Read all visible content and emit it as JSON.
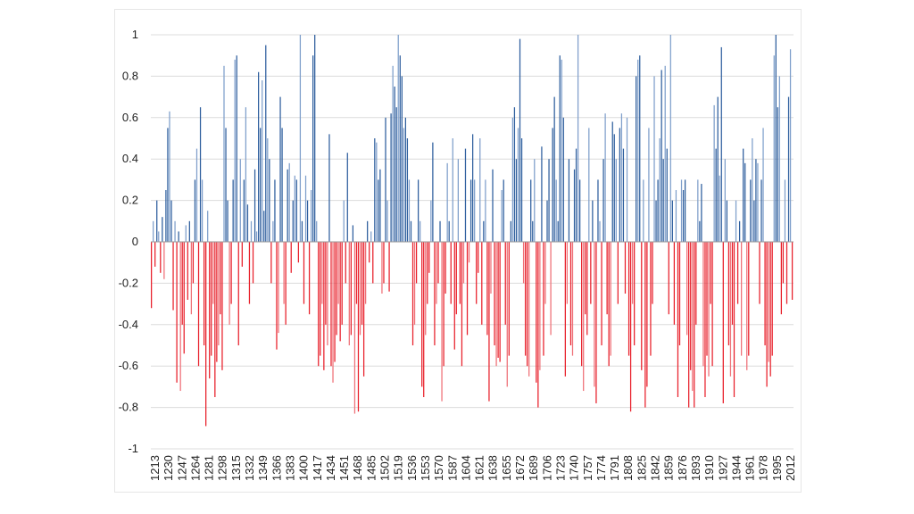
{
  "chart_data": {
    "type": "bar",
    "title": "",
    "xlabel": "",
    "ylabel": "",
    "x_range": [
      1213,
      2012
    ],
    "ylim": [
      -1,
      1
    ],
    "y_ticks": [
      1,
      0.8,
      0.6,
      0.4,
      0.2,
      0,
      -0.2,
      -0.4,
      -0.6,
      -0.8,
      -1
    ],
    "y_tick_labels": [
      "1",
      "0.8",
      "0.6",
      "0.4",
      "0.2",
      "0",
      "-0.2",
      "-0.4",
      "-0.6",
      "-0.8",
      "-1"
    ],
    "x_tick_labels": [
      "1213",
      "1230",
      "1247",
      "1264",
      "1281",
      "1298",
      "1315",
      "1332",
      "1349",
      "1366",
      "1383",
      "1400",
      "1417",
      "1434",
      "1451",
      "1468",
      "1485",
      "1502",
      "1519",
      "1536",
      "1553",
      "1570",
      "1587",
      "1604",
      "1621",
      "1638",
      "1655",
      "1672",
      "1689",
      "1706",
      "1723",
      "1740",
      "1757",
      "1774",
      "1791",
      "1808",
      "1825",
      "1842",
      "1859",
      "1876",
      "1893",
      "1910",
      "1927",
      "1944",
      "1961",
      "1978",
      "1995",
      "2012"
    ],
    "grid": true,
    "colors": {
      "positive": "#2f5f9e",
      "positive_light": "#7f9fcb",
      "negative": "#e8202b",
      "negative_light": "#ef7077"
    },
    "values": [
      -0.32,
      0.1,
      -0.12,
      0.2,
      0.05,
      -0.15,
      0.12,
      -0.18,
      0.25,
      0.55,
      0.63,
      0.2,
      -0.33,
      0.1,
      -0.68,
      0.05,
      -0.72,
      -0.4,
      -0.54,
      0.08,
      -0.28,
      0.1,
      -0.35,
      -0.2,
      0.3,
      0.45,
      -0.6,
      0.65,
      0.3,
      -0.5,
      -0.89,
      0.15,
      -0.66,
      -0.55,
      -0.3,
      -0.75,
      -0.58,
      -0.5,
      -0.35,
      -0.62,
      0.85,
      0.55,
      0.2,
      -0.4,
      -0.3,
      0.3,
      0.88,
      0.9,
      -0.5,
      0.4,
      -0.12,
      0.3,
      0.65,
      0.18,
      -0.3,
      0.1,
      -0.2,
      0.35,
      0.05,
      0.82,
      0.55,
      0.78,
      0.15,
      0.95,
      0.5,
      0.4,
      -0.2,
      0.1,
      0.3,
      -0.52,
      -0.44,
      0.7,
      0.55,
      -0.3,
      -0.4,
      0.35,
      0.38,
      -0.15,
      0.2,
      0.32,
      0.3,
      -0.1,
      1.0,
      0.1,
      -0.3,
      0.32,
      0.2,
      -0.35,
      0.25,
      0.9,
      1.0,
      0.1,
      -0.6,
      -0.55,
      -0.3,
      -0.62,
      -0.4,
      -0.5,
      0.52,
      -0.6,
      -0.68,
      -0.58,
      -0.45,
      -0.3,
      -0.48,
      -0.4,
      0.2,
      -0.2,
      0.43,
      -0.5,
      -0.45,
      0.08,
      -0.83,
      -0.3,
      -0.82,
      -0.45,
      -0.4,
      -0.65,
      -0.3,
      0.1,
      -0.1,
      0.05,
      -0.2,
      0.5,
      0.48,
      0.3,
      0.35,
      -0.25,
      -0.2,
      0.6,
      0.2,
      -0.24,
      0.62,
      0.85,
      0.75,
      0.65,
      1.0,
      0.9,
      0.8,
      0.55,
      0.6,
      0.5,
      0.3,
      0.1,
      -0.5,
      -0.4,
      -0.2,
      0.3,
      0.1,
      -0.7,
      -0.75,
      -0.45,
      -0.3,
      -0.15,
      0.2,
      0.48,
      -0.5,
      -0.3,
      -0.2,
      0.1,
      -0.77,
      -0.6,
      -0.25,
      0.38,
      0.1,
      -0.3,
      0.5,
      -0.52,
      -0.35,
      0.4,
      -0.3,
      -0.6,
      -0.2,
      0.45,
      -0.45,
      -0.1,
      0.3,
      0.52,
      0.3,
      -0.3,
      -0.15,
      0.5,
      -0.4,
      0.1,
      0.3,
      -0.45,
      -0.77,
      -0.25,
      0.35,
      -0.5,
      -0.6,
      -0.56,
      -0.58,
      0.25,
      0.3,
      -0.4,
      -0.7,
      -0.55,
      0.1,
      0.6,
      0.65,
      0.4,
      0.55,
      0.98,
      0.5,
      -0.2,
      -0.55,
      -0.6,
      -0.65,
      0.3,
      0.1,
      0.4,
      -0.68,
      -0.8,
      -0.62,
      0.46,
      -0.55,
      -0.3,
      0.2,
      0.4,
      -0.45,
      0.55,
      0.7,
      0.3,
      0.1,
      0.9,
      0.88,
      0.6,
      -0.65,
      -0.3,
      0.4,
      -0.5,
      -0.55,
      0.35,
      0.45,
      1.0,
      0.3,
      -0.6,
      -0.72,
      -0.35,
      -0.45,
      0.55,
      -0.3,
      0.2,
      -0.7,
      -0.78,
      0.3,
      0.1,
      -0.5,
      0.4,
      0.62,
      -0.35,
      -0.6,
      -0.55,
      0.58,
      0.52,
      0.4,
      -0.3,
      0.55,
      0.62,
      0.45,
      -0.25,
      0.6,
      -0.55,
      -0.82,
      -0.3,
      -0.5,
      0.8,
      0.88,
      0.9,
      -0.62,
      0.3,
      -0.8,
      -0.7,
      0.55,
      -0.55,
      -0.3,
      0.8,
      0.2,
      0.3,
      0.5,
      0.83,
      0.4,
      0.85,
      0.45,
      -0.35,
      1.0,
      0.2,
      -0.4,
      0.25,
      -0.75,
      -0.5,
      0.3,
      0.25,
      0.3,
      -0.45,
      -0.8,
      -0.62,
      -0.72,
      -0.8,
      -0.4,
      0.3,
      0.1,
      0.28,
      -0.6,
      -0.75,
      -0.55,
      -0.65,
      -0.3,
      -0.6,
      0.66,
      0.45,
      0.7,
      0.32,
      0.94,
      -0.78,
      0.4,
      0.2,
      -0.5,
      -0.65,
      -0.4,
      -0.75,
      0.2,
      -0.3,
      0.1,
      -0.55,
      0.45,
      0.38,
      -0.62,
      -0.55,
      0.3,
      0.5,
      0.2,
      0.4,
      0.38,
      -0.3,
      0.3,
      0.55,
      -0.5,
      -0.7,
      -0.58,
      -0.65,
      -0.55,
      0.9,
      1.0,
      0.65,
      0.8,
      -0.35,
      -0.2,
      0.3,
      -0.3,
      0.7,
      0.93,
      -0.28
    ]
  }
}
